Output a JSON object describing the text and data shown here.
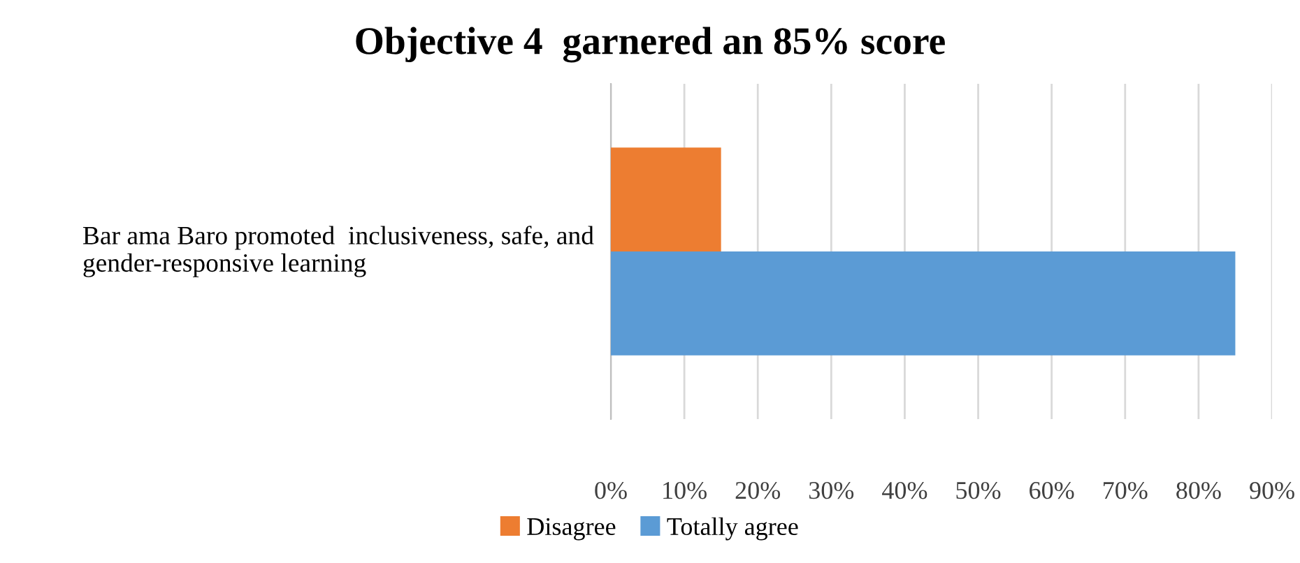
{
  "chart_data": {
    "type": "bar",
    "orientation": "horizontal",
    "title": "Objective 4  garnered an 85% score",
    "categories": [
      "Bar ama Baro promoted  inclusiveness, safe, and gender-responsive learning"
    ],
    "series": [
      {
        "name": "Disagree",
        "color": "#ed7d31",
        "values": [
          15
        ]
      },
      {
        "name": "Totally agree",
        "color": "#5b9bd5",
        "values": [
          85
        ]
      }
    ],
    "xlim": [
      0,
      90
    ],
    "xticks": [
      {
        "value": 0,
        "label": "0%"
      },
      {
        "value": 10,
        "label": "10%"
      },
      {
        "value": 20,
        "label": "20%"
      },
      {
        "value": 30,
        "label": "30%"
      },
      {
        "value": 40,
        "label": "40%"
      },
      {
        "value": 50,
        "label": "50%"
      },
      {
        "value": 60,
        "label": "60%"
      },
      {
        "value": 70,
        "label": "70%"
      },
      {
        "value": 80,
        "label": "80%"
      },
      {
        "value": 90,
        "label": "90%"
      }
    ],
    "grid": "x",
    "legend": "bottom"
  }
}
